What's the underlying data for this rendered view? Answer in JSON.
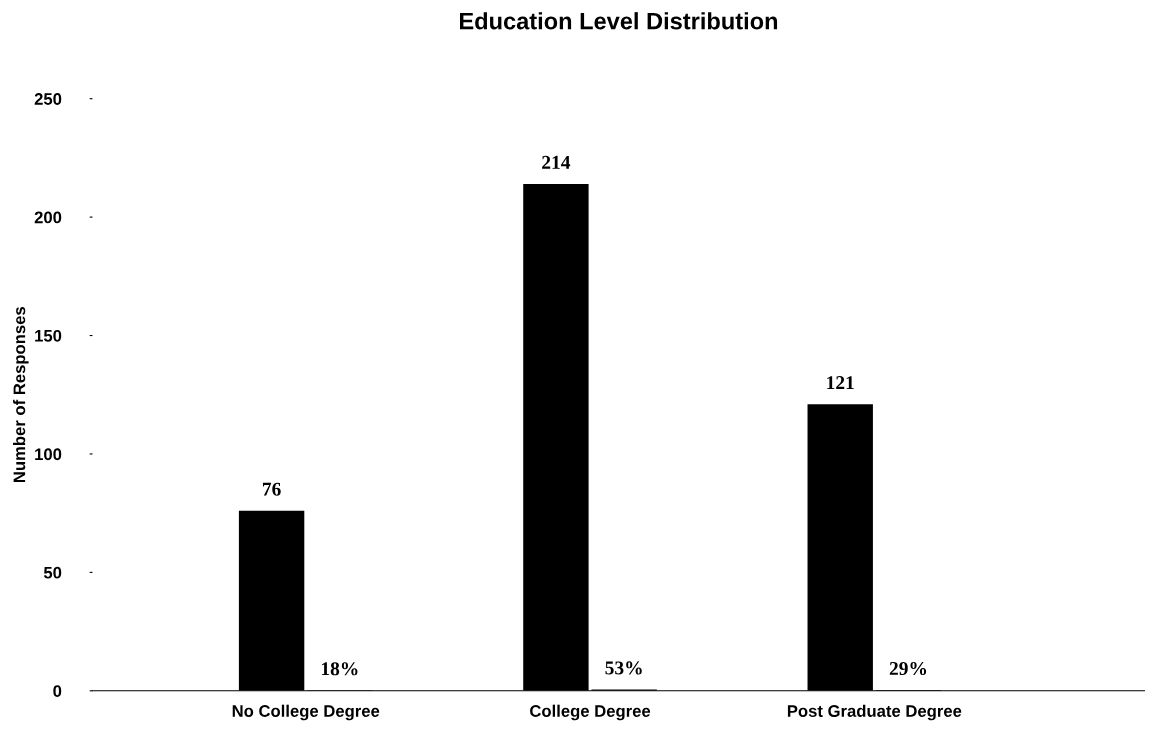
{
  "chart_data": {
    "type": "bar",
    "title": "Education Level Distribution",
    "ylabel": "Number of Responses",
    "categories": [
      "No College Degree",
      "College Degree",
      "Post Graduate Degree"
    ],
    "series": [
      {
        "color": "#000000",
        "values": [
          76,
          214,
          121
        ],
        "value_labels": [
          "76",
          "214",
          "121"
        ]
      },
      {
        "color": "#000000",
        "values": [
          0.18,
          0.53,
          0.29
        ],
        "value_labels": [
          "18%",
          "53%",
          "29%"
        ]
      }
    ],
    "ylim": [
      0,
      250
    ],
    "yticks": [
      0,
      50,
      100,
      150,
      200,
      250
    ],
    "grid": false,
    "legend": false
  }
}
